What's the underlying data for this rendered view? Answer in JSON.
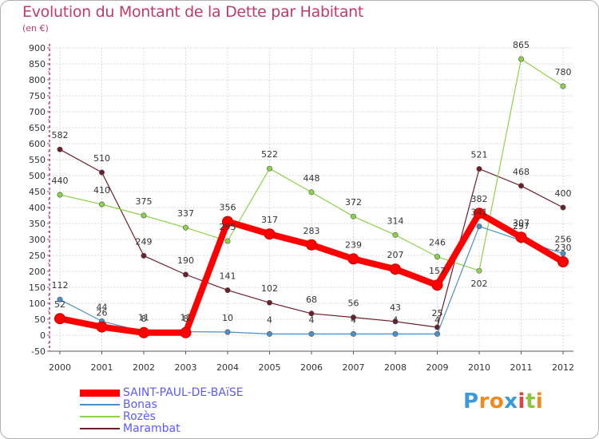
{
  "header": {
    "title": "Evolution du Montant de la Dette par Habitant",
    "subtitle": "(en €)"
  },
  "logo": {
    "letters": [
      "P",
      "r",
      "o",
      "x",
      "i",
      "t",
      "i"
    ],
    "colors": [
      "#3a9ad9",
      "#f08a1c",
      "#f08a1c",
      "#3a9ad9",
      "#e04040",
      "#8cc63f",
      "#f08a1c"
    ]
  },
  "chart_data": {
    "type": "line",
    "title": "Evolution du Montant de la Dette par Habitant",
    "subtitle": "(en €)",
    "x": [
      "2000",
      "2001",
      "2002",
      "2003",
      "2004",
      "2005",
      "2006",
      "2007",
      "2008",
      "2009",
      "2010",
      "2011",
      "2012"
    ],
    "ylim": [
      -50,
      900
    ],
    "yticks": [
      -50,
      0,
      50,
      100,
      150,
      200,
      250,
      300,
      350,
      400,
      450,
      500,
      550,
      600,
      650,
      700,
      750,
      800,
      850,
      900
    ],
    "grid": true,
    "legend_position": "bottom-left",
    "series": [
      {
        "name": "SAINT-PAUL-DE-BAïSE",
        "color": "#ff0000",
        "values": [
          52,
          26,
          8,
          8,
          356,
          317,
          283,
          239,
          207,
          157,
          382,
          307,
          230
        ]
      },
      {
        "name": "Bonas",
        "color": "#4a90c8",
        "values": [
          112,
          44,
          11,
          11,
          10,
          4,
          4,
          4,
          4,
          4,
          341,
          297,
          256
        ]
      },
      {
        "name": "Rozès",
        "color": "#8cd24a",
        "values": [
          440,
          410,
          375,
          337,
          295,
          522,
          448,
          372,
          314,
          246,
          202,
          865,
          780
        ]
      },
      {
        "name": "Marambat",
        "color": "#6e1e28",
        "values": [
          582,
          510,
          249,
          190,
          141,
          102,
          68,
          56,
          43,
          25,
          521,
          468,
          400
        ]
      }
    ]
  }
}
